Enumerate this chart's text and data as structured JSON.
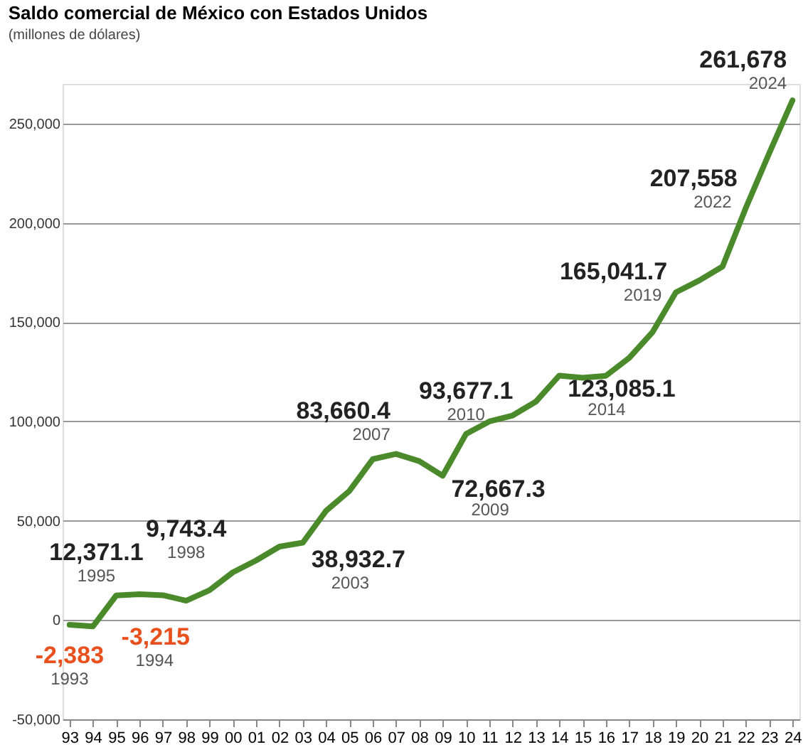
{
  "chart_data": {
    "type": "line",
    "title": "Saldo comercial de México con Estados Unidos",
    "subtitle": "(millones de dólares)",
    "categories": [
      "93",
      "94",
      "95",
      "96",
      "97",
      "98",
      "99",
      "00",
      "01",
      "02",
      "03",
      "04",
      "05",
      "06",
      "07",
      "08",
      "09",
      "10",
      "11",
      "12",
      "13",
      "14",
      "15",
      "16",
      "17",
      "18",
      "19",
      "20",
      "21",
      "22",
      "23",
      "24"
    ],
    "series": [
      {
        "color": "#4a8a2a",
        "values": [
          -2383,
          -3215,
          12371.1,
          13000,
          12500,
          9743.4,
          15000,
          24000,
          30000,
          37000,
          38932.7,
          55000,
          65000,
          81000,
          83660.4,
          80000,
          72667.3,
          93677.1,
          100000,
          103000,
          110000,
          123085.1,
          122000,
          123000,
          132000,
          145000,
          165041.7,
          171000,
          178000,
          207558,
          235000,
          261678
        ]
      }
    ],
    "ylim": [
      -50000,
      270000
    ],
    "yticks": [
      {
        "value": -50000,
        "label": "-50,000"
      },
      0,
      {
        "value": 50000,
        "label": "50,000"
      },
      {
        "value": 100000,
        "label": "100,000"
      },
      {
        "value": 150000,
        "label": "150,000"
      },
      {
        "value": 200000,
        "label": "200,000"
      },
      {
        "value": 250000,
        "label": "250,000"
      }
    ],
    "grid": "y",
    "legend": false,
    "annotations": [
      {
        "text": "-2,383",
        "x": "93",
        "y": -2383
      },
      {
        "text": "1993",
        "x": "93",
        "y": -2383
      },
      {
        "text": "-3,215",
        "x": "94",
        "y": -3215
      },
      {
        "text": "1994",
        "x": "94",
        "y": -3215
      },
      {
        "text": "12,371.1",
        "x": "95",
        "y": 12371.1
      },
      {
        "text": "1995",
        "x": "95",
        "y": 12371.1
      },
      {
        "text": "9,743.4",
        "x": "98",
        "y": 9743.4
      },
      {
        "text": "1998",
        "x": "98",
        "y": 9743.4
      },
      {
        "text": "38,932.7",
        "x": "03",
        "y": 38932.7
      },
      {
        "text": "2003",
        "x": "03",
        "y": 38932.7
      },
      {
        "text": "83,660.4",
        "x": "07",
        "y": 83660.4
      },
      {
        "text": "2007",
        "x": "07",
        "y": 83660.4
      },
      {
        "text": "72,667.3",
        "x": "09",
        "y": 72667.3
      },
      {
        "text": "2009",
        "x": "09",
        "y": 72667.3
      },
      {
        "text": "93,677.1",
        "x": "10",
        "y": 93677.1
      },
      {
        "text": "2010",
        "x": "10",
        "y": 93677.1
      },
      {
        "text": "123,085.1",
        "x": "14",
        "y": 123085.1
      },
      {
        "text": "2014",
        "x": "14",
        "y": 123085.1
      },
      {
        "text": "165,041.7",
        "x": "19",
        "y": 165041.7
      },
      {
        "text": "2019",
        "x": "19",
        "y": 165041.7
      },
      {
        "text": "207,558",
        "x": "22",
        "y": 207558
      },
      {
        "text": "2022",
        "x": "22",
        "y": 207558
      },
      {
        "text": "261,678",
        "x": "24",
        "y": 261678
      },
      {
        "text": "2024",
        "x": "24",
        "y": 261678
      }
    ]
  }
}
